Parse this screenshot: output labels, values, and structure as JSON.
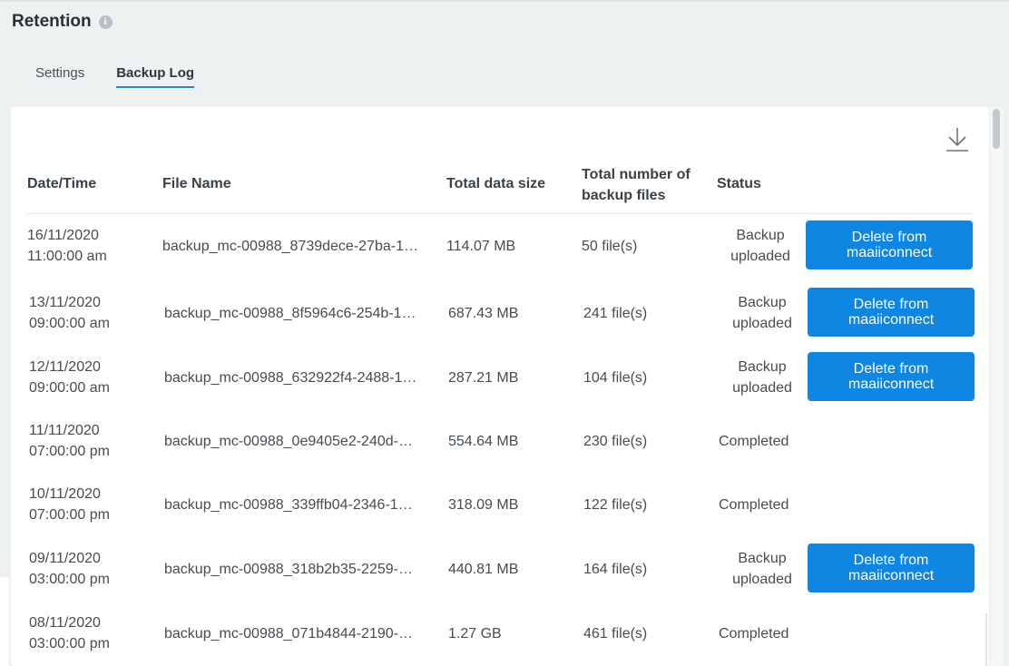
{
  "page": {
    "title": "Retention",
    "info_icon": "i"
  },
  "tabs": [
    {
      "label": "Settings",
      "active": false
    },
    {
      "label": "Backup Log",
      "active": true
    }
  ],
  "table": {
    "columns": {
      "datetime": "Date/Time",
      "filename": "File Name",
      "size": "Total data size",
      "count_line1": "Total number of",
      "count_line2": "backup files",
      "status": "Status"
    },
    "rows": [
      {
        "date": "16/11/2020",
        "time": "11:00:00 am",
        "file": "backup_mc-00988_8739dece-27ba-1…",
        "size": "114.07 MB",
        "count": "50 file(s)",
        "status_line1": "Backup",
        "status_line2": "uploaded",
        "action": "Delete from maaiiconnect"
      },
      {
        "date": "13/11/2020",
        "time": "09:00:00 am",
        "file": "backup_mc-00988_8f5964c6-254b-1…",
        "size": "687.43 MB",
        "count": "241 file(s)",
        "status_line1": "Backup",
        "status_line2": "uploaded",
        "action": "Delete from maaiiconnect"
      },
      {
        "date": "12/11/2020",
        "time": "09:00:00 am",
        "file": "backup_mc-00988_632922f4-2488-1…",
        "size": "287.21 MB",
        "count": "104 file(s)",
        "status_line1": "Backup",
        "status_line2": "uploaded",
        "action": "Delete from maaiiconnect"
      },
      {
        "date": "11/11/2020",
        "time": "07:00:00 pm",
        "file": "backup_mc-00988_0e9405e2-240d-…",
        "size": "554.64 MB",
        "count": "230 file(s)",
        "status": "Completed"
      },
      {
        "date": "10/11/2020",
        "time": "07:00:00 pm",
        "file": "backup_mc-00988_339ffb04-2346-1…",
        "size": "318.09 MB",
        "count": "122 file(s)",
        "status": "Completed"
      },
      {
        "date": "09/11/2020",
        "time": "03:00:00 pm",
        "file": "backup_mc-00988_318b2b35-2259-…",
        "size": "440.81 MB",
        "count": "164 file(s)",
        "status_line1": "Backup",
        "status_line2": "uploaded",
        "action": "Delete from maaiiconnect"
      },
      {
        "date": "08/11/2020",
        "time": "03:00:00 pm",
        "file": "backup_mc-00988_071b4844-2190-…",
        "size": "1.27 GB",
        "count": "461 file(s)",
        "status": "Completed"
      }
    ]
  },
  "icons": {
    "download": "download-icon",
    "info": "info-icon"
  },
  "colors": {
    "accent": "#1f87e0",
    "button": "#0f86e2",
    "background": "#edf1f2"
  }
}
